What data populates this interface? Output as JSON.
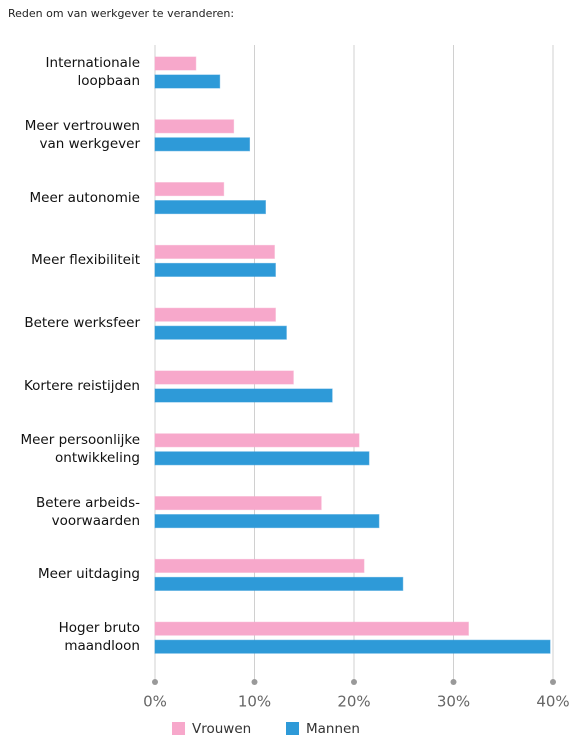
{
  "chart_data": {
    "type": "bar",
    "orientation": "horizontal",
    "title": "Reden om van werkgever te veranderen:",
    "categories": [
      "Internationale loopbaan",
      "Meer vertrouwen van werkgever",
      "Meer autonomie",
      "Meer flexibiliteit",
      "Betere werksfeer",
      "Kortere reistijden",
      "Meer persoonlijke ontwikkeling",
      "Betere arbeids-voorwaarden",
      "Meer uitdaging",
      "Hoger bruto maandloon"
    ],
    "series": [
      {
        "name": "Vrouwen",
        "color": "#f7a8cb",
        "values": [
          4.1,
          7.9,
          6.9,
          12.0,
          12.1,
          13.9,
          20.5,
          16.7,
          21.0,
          31.5
        ]
      },
      {
        "name": "Mannen",
        "color": "#2e9ad8",
        "values": [
          6.5,
          9.5,
          11.1,
          12.1,
          13.2,
          17.8,
          21.5,
          22.5,
          24.9,
          39.7
        ]
      }
    ],
    "xlim": [
      0,
      40
    ],
    "xticks": [
      {
        "value": 0,
        "label": "0%"
      },
      {
        "value": 10,
        "label": "10%"
      },
      {
        "value": 20,
        "label": "20%"
      },
      {
        "value": 30,
        "label": "30%"
      },
      {
        "value": 40,
        "label": "40%"
      }
    ],
    "grid": true
  }
}
